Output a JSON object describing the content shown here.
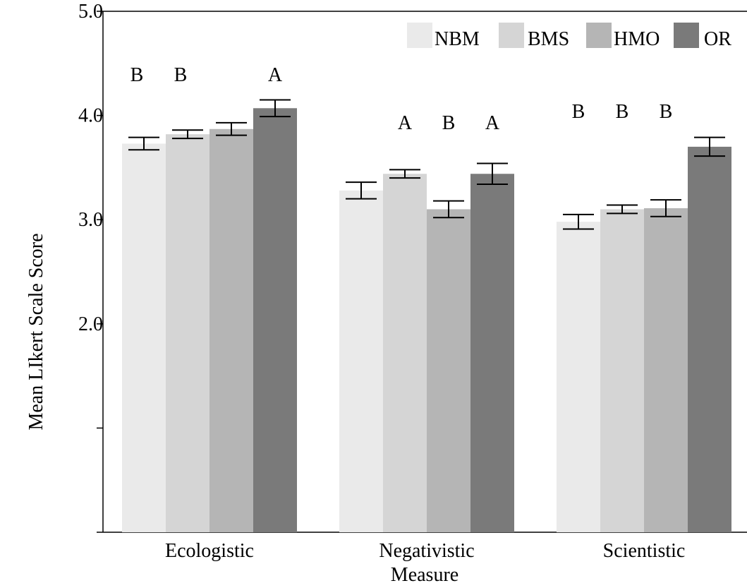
{
  "chart_data": {
    "type": "bar",
    "title": "",
    "xlabel": "Measure",
    "ylabel": "Mean LIkert Scale Score",
    "ylim": [
      0,
      5.0
    ],
    "yticks": [
      {
        "value": 5.0,
        "label": "5.0"
      },
      {
        "value": 4.0,
        "label": "4.0"
      },
      {
        "value": 3.0,
        "label": "3.0"
      },
      {
        "value": 2.0,
        "label": "2.0"
      },
      {
        "value": 1.0,
        "label": ""
      },
      {
        "value": 0.0,
        "label": ""
      }
    ],
    "categories": [
      "Ecologistic",
      "Negativistic",
      "Scientistic"
    ],
    "legend_position": "top-right",
    "grid": false,
    "series": [
      {
        "name": "NBM",
        "color": "#eaeaea",
        "values": [
          3.73,
          3.28,
          2.98
        ],
        "err": [
          0.06,
          0.08,
          0.07
        ],
        "letters": [
          "B",
          "",
          "B"
        ]
      },
      {
        "name": "BMS",
        "color": "#d5d5d5",
        "values": [
          3.82,
          3.44,
          3.1
        ],
        "err": [
          0.04,
          0.04,
          0.04
        ],
        "letters": [
          "B",
          "A",
          "B"
        ]
      },
      {
        "name": "HMO",
        "color": "#b5b5b5",
        "values": [
          3.87,
          3.1,
          3.11
        ],
        "err": [
          0.06,
          0.08,
          0.08
        ],
        "letters": [
          "",
          "B",
          "B"
        ]
      },
      {
        "name": "OR",
        "color": "#7a7a7a",
        "values": [
          4.07,
          3.44,
          3.7
        ],
        "err": [
          0.08,
          0.1,
          0.09
        ],
        "letters": [
          "A",
          "A",
          ""
        ]
      }
    ]
  }
}
